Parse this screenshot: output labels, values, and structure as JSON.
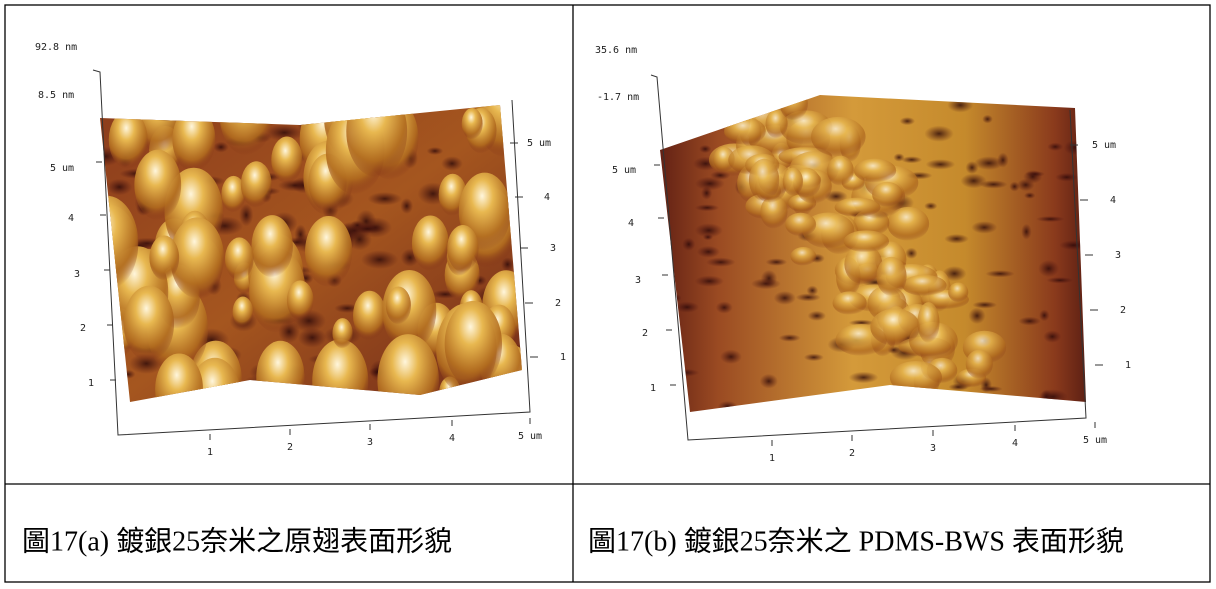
{
  "panels": [
    {
      "top_label": "92.8 nm",
      "mid_label": "8.5 nm",
      "left_axis": [
        "5 um",
        "4",
        "3",
        "2",
        "1"
      ],
      "right_axis": [
        "5 um",
        "4",
        "3",
        "2",
        "1"
      ],
      "bottom_axis": [
        "1",
        "2",
        "3",
        "4",
        "5 um"
      ],
      "caption": "圖17(a)  鍍銀25奈米之原翅表面形貌"
    },
    {
      "top_label": "35.6 nm",
      "mid_label": "-1.7 nm",
      "left_axis": [
        "5 um",
        "4",
        "3",
        "2",
        "1"
      ],
      "right_axis": [
        "5 um",
        "4",
        "3",
        "2",
        "1"
      ],
      "bottom_axis": [
        "1",
        "2",
        "3",
        "4",
        "5 um"
      ],
      "caption": "圖17(b)  鍍銀25奈米之 PDMS-BWS 表面形貌"
    }
  ]
}
